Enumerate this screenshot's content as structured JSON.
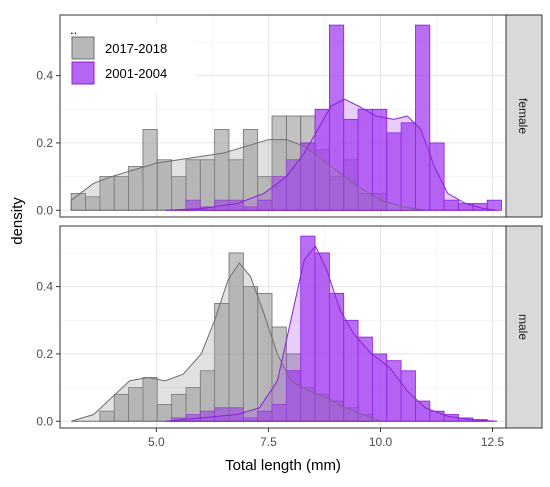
{
  "chart_data": {
    "type": "bar",
    "xlabel": "Total length (mm)",
    "ylabel": "density",
    "xlim": [
      2.85,
      12.8
    ],
    "ylim": [
      -0.02,
      0.58
    ],
    "x_ticks": [
      5.0,
      7.5,
      10.0,
      12.5
    ],
    "x_tick_labels": [
      "5.0",
      "7.5",
      "10.0",
      "12.5"
    ],
    "y_ticks": [
      0.0,
      0.2,
      0.4
    ],
    "y_tick_labels": [
      "0.0",
      "0.2",
      "0.4"
    ],
    "bin_width": 0.32,
    "legend": {
      "position": "top-left",
      "title": "..",
      "entries": [
        {
          "label": "2017-2018",
          "color": "#8f8f8f"
        },
        {
          "label": "2001-2004",
          "color": "#a020f0"
        }
      ]
    },
    "colors": {
      "gray_fill": "#9a9a9a",
      "gray_line": "#6e6e6e",
      "purple_fill": "#a23ef0",
      "purple_line": "#8b1fd9"
    },
    "panels": [
      {
        "strip_label": "female",
        "series": [
          {
            "name": "2017-2018",
            "bin_starts": [
              3.1,
              3.42,
              3.74,
              4.06,
              4.38,
              4.7,
              5.02,
              5.34,
              5.66,
              5.98,
              6.3,
              6.62,
              6.94,
              7.26,
              7.58,
              7.9,
              8.22,
              8.54,
              8.86,
              9.18,
              9.5,
              9.82
            ],
            "density": [
              0.05,
              0.04,
              0.1,
              0.1,
              0.13,
              0.24,
              0.15,
              0.1,
              0.15,
              0.15,
              0.24,
              0.15,
              0.24,
              0.1,
              0.28,
              0.28,
              0.28,
              0.18,
              0.1,
              0.15,
              0.05,
              0.05
            ],
            "density_curve": {
              "x": [
                3.1,
                3.6,
                4.0,
                4.5,
                5.0,
                5.5,
                6.0,
                6.5,
                7.0,
                7.5,
                7.9,
                8.3,
                8.7,
                9.1,
                9.5,
                10.0,
                10.5,
                11.0
              ],
              "y": [
                0.03,
                0.08,
                0.1,
                0.12,
                0.14,
                0.15,
                0.16,
                0.17,
                0.19,
                0.21,
                0.21,
                0.19,
                0.15,
                0.11,
                0.07,
                0.03,
                0.01,
                0.0
              ]
            }
          },
          {
            "name": "2001-2004",
            "bin_starts": [
              5.34,
              5.66,
              5.98,
              6.3,
              6.62,
              6.94,
              7.26,
              7.58,
              7.9,
              8.22,
              8.54,
              8.86,
              9.18,
              9.5,
              9.82,
              10.14,
              10.46,
              10.78,
              11.1,
              11.42,
              11.74,
              12.06,
              12.38
            ],
            "density": [
              0.0,
              0.03,
              0.01,
              0.03,
              0.03,
              0.01,
              0.03,
              0.1,
              0.15,
              0.2,
              0.3,
              0.55,
              0.27,
              0.3,
              0.3,
              0.23,
              0.26,
              0.55,
              0.2,
              0.03,
              0.02,
              0.02,
              0.03
            ],
            "density_curve": {
              "x": [
                5.2,
                6.0,
                6.8,
                7.4,
                7.9,
                8.3,
                8.6,
                8.9,
                9.2,
                9.5,
                9.9,
                10.3,
                10.6,
                10.9,
                11.2,
                11.5,
                11.9,
                12.3,
                12.6
              ],
              "y": [
                0.0,
                0.005,
                0.02,
                0.05,
                0.1,
                0.17,
                0.24,
                0.31,
                0.33,
                0.31,
                0.28,
                0.27,
                0.28,
                0.24,
                0.13,
                0.05,
                0.02,
                0.005,
                0.0
              ]
            }
          }
        ]
      },
      {
        "strip_label": "male",
        "series": [
          {
            "name": "2017-2018",
            "bin_starts": [
              3.74,
              4.06,
              4.38,
              4.7,
              5.02,
              5.34,
              5.66,
              5.98,
              6.3,
              6.62,
              6.94,
              7.26,
              7.58,
              7.9,
              8.22,
              8.54,
              8.86,
              9.18,
              9.5
            ],
            "density": [
              0.03,
              0.08,
              0.1,
              0.13,
              0.05,
              0.08,
              0.1,
              0.15,
              0.35,
              0.5,
              0.4,
              0.38,
              0.28,
              0.2,
              0.1,
              0.08,
              0.06,
              0.04,
              0.02
            ],
            "density_curve": {
              "x": [
                3.1,
                3.6,
                4.0,
                4.4,
                4.8,
                5.2,
                5.6,
                6.0,
                6.3,
                6.6,
                6.85,
                7.1,
                7.4,
                7.7,
                8.0,
                8.4,
                8.8,
                9.2,
                9.6,
                10.0
              ],
              "y": [
                0.0,
                0.02,
                0.07,
                0.12,
                0.13,
                0.12,
                0.14,
                0.2,
                0.3,
                0.42,
                0.47,
                0.43,
                0.32,
                0.2,
                0.12,
                0.09,
                0.07,
                0.04,
                0.02,
                0.0
              ]
            }
          },
          {
            "name": "2001-2004",
            "bin_starts": [
              5.34,
              5.66,
              5.98,
              6.3,
              6.62,
              6.94,
              7.26,
              7.58,
              7.9,
              8.22,
              8.54,
              8.86,
              9.18,
              9.5,
              9.82,
              10.14,
              10.46,
              10.78,
              11.1,
              11.42,
              11.74,
              12.06
            ],
            "density": [
              0.01,
              0.02,
              0.03,
              0.04,
              0.04,
              0.01,
              0.03,
              0.05,
              0.15,
              0.55,
              0.5,
              0.38,
              0.3,
              0.25,
              0.2,
              0.18,
              0.15,
              0.06,
              0.03,
              0.02,
              0.01,
              0.005
            ],
            "density_curve": {
              "x": [
                5.2,
                6.0,
                6.8,
                7.3,
                7.7,
                8.0,
                8.3,
                8.55,
                8.8,
                9.1,
                9.4,
                9.8,
                10.2,
                10.6,
                11.0,
                11.5,
                12.0,
                12.6
              ],
              "y": [
                0.0,
                0.01,
                0.02,
                0.04,
                0.12,
                0.3,
                0.48,
                0.52,
                0.45,
                0.33,
                0.26,
                0.2,
                0.16,
                0.09,
                0.04,
                0.015,
                0.005,
                0.0
              ]
            }
          }
        ]
      }
    ]
  }
}
